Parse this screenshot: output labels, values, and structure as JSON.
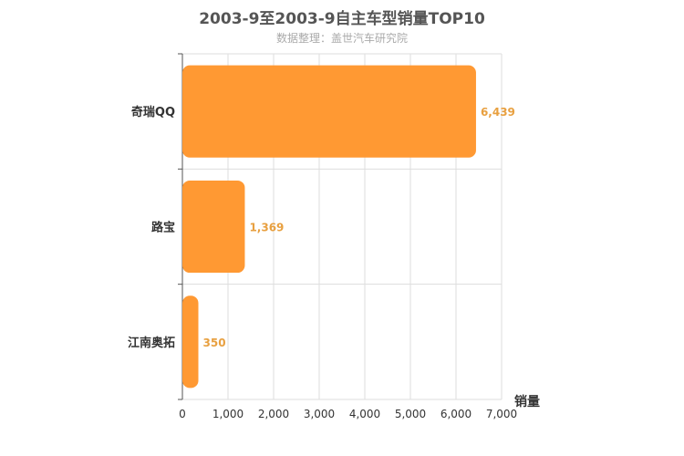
{
  "title": "2003-9至2003-9自主车型销量TOP10",
  "subtitle": "数据整理：盖世汽车研究院",
  "chart_data": {
    "type": "bar",
    "orientation": "horizontal",
    "title": "2003-9至2003-9自主车型销量TOP10",
    "subtitle": "数据整理：盖世汽车研究院",
    "xlabel": "销量",
    "ylabel": "",
    "xlim": [
      0,
      7000
    ],
    "xticks": [
      0,
      1000,
      2000,
      3000,
      4000,
      5000,
      6000,
      7000
    ],
    "xtick_labels": [
      "0",
      "1,000",
      "2,000",
      "3,000",
      "4,000",
      "5,000",
      "6,000",
      "7,000"
    ],
    "categories": [
      "奇瑞QQ",
      "路宝",
      "江南奥拓"
    ],
    "values": [
      6439,
      1369,
      350
    ],
    "value_labels": [
      "6,439",
      "1,369",
      "350"
    ],
    "grid": true,
    "bar_color": "#ff9933",
    "label_color": "#e8a040"
  }
}
